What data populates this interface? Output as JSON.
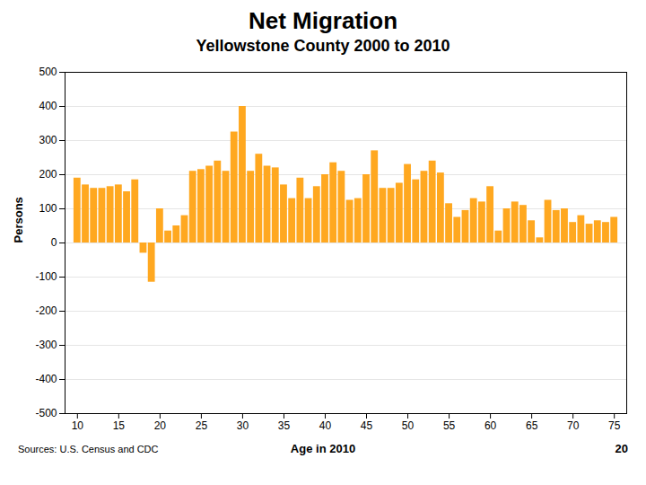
{
  "chart_data": {
    "type": "bar",
    "title": "Net Migration",
    "subtitle": "Yellowstone County 2000 to 2010",
    "xlabel": "Age in 2010",
    "ylabel": "Persons",
    "annotations": [
      "Sources:  U.S. Census and CDC",
      "20"
    ],
    "x": [
      10,
      11,
      12,
      13,
      14,
      15,
      16,
      17,
      18,
      19,
      20,
      21,
      22,
      23,
      24,
      25,
      26,
      27,
      28,
      29,
      30,
      31,
      32,
      33,
      34,
      35,
      36,
      37,
      38,
      39,
      40,
      41,
      42,
      43,
      44,
      45,
      46,
      47,
      48,
      49,
      50,
      51,
      52,
      53,
      54,
      55,
      56,
      57,
      58,
      59,
      60,
      61,
      62,
      63,
      64,
      65,
      66,
      67,
      68,
      69,
      70,
      71,
      72,
      73,
      74,
      75
    ],
    "values": [
      190,
      170,
      160,
      160,
      165,
      170,
      150,
      185,
      -30,
      -115,
      100,
      35,
      50,
      80,
      210,
      215,
      225,
      240,
      210,
      325,
      400,
      210,
      260,
      225,
      220,
      170,
      130,
      190,
      130,
      165,
      200,
      235,
      210,
      125,
      130,
      200,
      270,
      160,
      160,
      175,
      230,
      185,
      210,
      240,
      205,
      115,
      75,
      95,
      130,
      120,
      165,
      35,
      100,
      120,
      110,
      65,
      15,
      125,
      95,
      100,
      60,
      80,
      55,
      65,
      60,
      75
    ],
    "color": "#FFA820",
    "xlim": [
      8.5,
      76.5
    ],
    "xticks": [
      10,
      15,
      20,
      25,
      30,
      35,
      40,
      45,
      50,
      55,
      60,
      65,
      70,
      75
    ],
    "ylim": [
      -500,
      500
    ],
    "yticks": [
      -500,
      -400,
      -300,
      -200,
      -100,
      0,
      100,
      200,
      300,
      400,
      500
    ],
    "grid": true
  }
}
